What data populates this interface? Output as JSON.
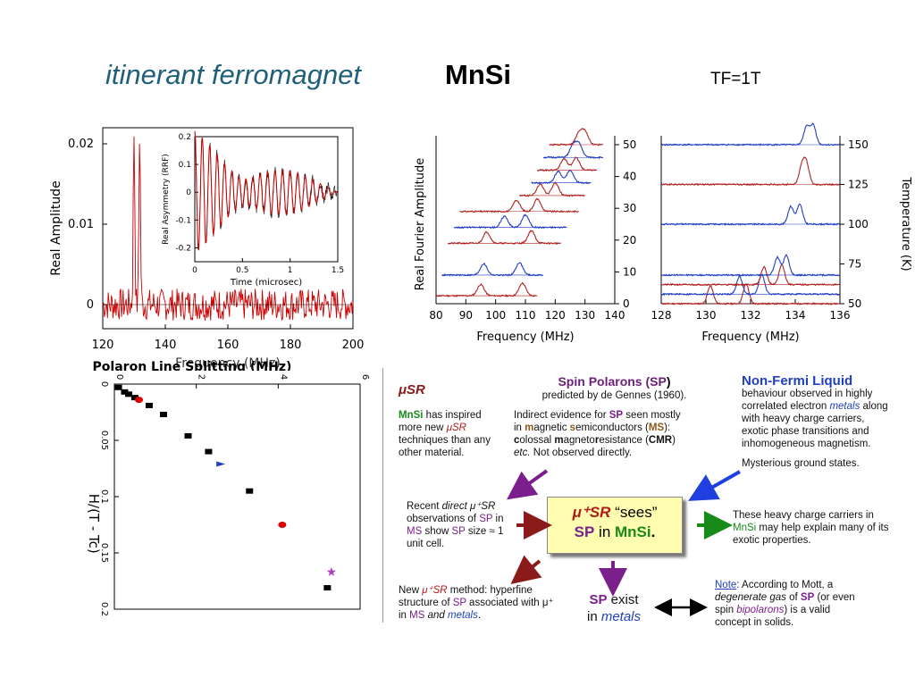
{
  "title": {
    "part1": "itinerant ferromagnet",
    "part2": "MnSi",
    "tf": "TF=1T"
  },
  "chart_data": [
    {
      "type": "line",
      "name_id": "fourier-amplitude",
      "xlabel": "Frequency (MHz)",
      "xlabel_overlap": "Polaron Line Splitting (MHz)",
      "ylabel": "Real Amplitude",
      "xlim": [
        120,
        200
      ],
      "ylim": [
        -0.003,
        0.022
      ],
      "xticks": [
        120,
        140,
        160,
        180,
        200
      ],
      "yticks": [
        0,
        0.01,
        0.02
      ],
      "ytick_labels": [
        "0",
        "0.01",
        "0.02"
      ],
      "peaks": [
        {
          "x": 130,
          "y": 0.0215
        },
        {
          "x": 131.8,
          "y": 0.0215
        }
      ],
      "noise_amplitude": 0.002,
      "color": "#cc0000",
      "inset": {
        "xlabel": "Time (microsec)",
        "ylabel": "Real Asymmetry (RRF)",
        "xlim": [
          0,
          1.5
        ],
        "ylim": [
          -0.25,
          0.2
        ],
        "xticks": [
          0,
          0.5,
          1,
          1.5
        ],
        "xtick_labels": [
          "0",
          "0.5",
          "1",
          "1.5"
        ],
        "yticks": [
          -0.2,
          -0.1,
          0,
          0.1,
          0.2
        ],
        "ytick_labels": [
          "-0.2",
          "-0.1",
          "0",
          "0.1",
          "0.2"
        ]
      }
    },
    {
      "type": "line",
      "name_id": "spectra-80-140",
      "xlabel": "Frequency (MHz)",
      "ylabel": "Real Fourier Amplitude",
      "xlim": [
        80,
        140
      ],
      "xticks": [
        80,
        90,
        100,
        110,
        120,
        130,
        140
      ],
      "right_axis_label": "Temperature (K)",
      "right_ticks": [
        0,
        10,
        20,
        30,
        40,
        50
      ],
      "series": [
        {
          "color": "#b22222",
          "temperature": 2.5,
          "x_range": [
            80,
            114
          ],
          "peaks": [
            95,
            109
          ]
        },
        {
          "color": "#1f3fbf",
          "temperature": 9,
          "x_range": [
            82,
            116
          ],
          "peaks": [
            96,
            108
          ]
        },
        {
          "color": "#b22222",
          "temperature": 19,
          "x_range": [
            84,
            122
          ],
          "peaks": [
            97,
            112
          ]
        },
        {
          "color": "#1f3fbf",
          "temperature": 24,
          "x_range": [
            86,
            124
          ],
          "peaks": [
            103,
            110
          ]
        },
        {
          "color": "#b22222",
          "temperature": 29,
          "x_range": [
            88,
            128
          ],
          "peaks": [
            107,
            114
          ]
        },
        {
          "color": "#b22222",
          "temperature": 34,
          "x_range": [
            108,
            130
          ],
          "peaks": [
            115,
            120
          ]
        },
        {
          "color": "#1f3fbf",
          "temperature": 38,
          "x_range": [
            112,
            132
          ],
          "peaks": [
            121,
            125
          ]
        },
        {
          "color": "#b22222",
          "temperature": 42,
          "x_range": [
            114,
            134
          ],
          "peaks": [
            123,
            127
          ]
        },
        {
          "color": "#1f3fbf",
          "temperature": 46,
          "x_range": [
            116,
            136
          ],
          "peaks": [
            126,
            128
          ]
        },
        {
          "color": "#b22222",
          "temperature": 50,
          "x_range": [
            118,
            136
          ],
          "peaks": [
            128,
            130
          ]
        }
      ]
    },
    {
      "type": "line",
      "name_id": "spectra-128-136",
      "xlabel": "Frequency (MHz)",
      "xlim": [
        128,
        136
      ],
      "xticks": [
        128,
        130,
        132,
        134,
        136
      ],
      "right_axis_label": "Temperature (K)",
      "right_ticks": [
        50,
        75,
        100,
        125,
        150
      ],
      "series": [
        {
          "color": "#b22222",
          "temperature": 50,
          "peaks": [
            130.2,
            131.8
          ]
        },
        {
          "color": "#1f3fbf",
          "temperature": 56,
          "peaks": [
            131.5,
            132.5
          ]
        },
        {
          "color": "#b22222",
          "temperature": 62,
          "peaks": [
            132.6,
            133.4
          ]
        },
        {
          "color": "#1f3fbf",
          "temperature": 68,
          "peaks": [
            133.2,
            133.6
          ]
        },
        {
          "color": "#1f3fbf",
          "temperature": 100,
          "peaks": [
            133.8,
            134.2
          ]
        },
        {
          "color": "#b22222",
          "temperature": 125,
          "peaks": [
            134.3,
            134.5
          ]
        },
        {
          "color": "#1f3fbf",
          "temperature": 150,
          "peaks": [
            134.5,
            134.8
          ]
        }
      ]
    },
    {
      "type": "scatter",
      "name_id": "polaron-splitting",
      "xlabel": "H/(T - Tc)",
      "xlim": [
        0,
        6
      ],
      "ylim": [
        0,
        0.2
      ],
      "xticks": [
        0,
        2,
        4,
        6
      ],
      "yticks": [
        0,
        0.05,
        0.1,
        0.15,
        0.2
      ],
      "ytick_labels": [
        "0",
        "0.05",
        "0.1",
        "0.15",
        "0.2"
      ],
      "points": [
        {
          "x": 0.1,
          "y": 0.003,
          "shape": "square",
          "color": "#000000"
        },
        {
          "x": 0.25,
          "y": 0.007,
          "shape": "square",
          "color": "#000000"
        },
        {
          "x": 0.35,
          "y": 0.009,
          "shape": "square",
          "color": "#000000"
        },
        {
          "x": 0.5,
          "y": 0.012,
          "shape": "square",
          "color": "#000000"
        },
        {
          "x": 0.6,
          "y": 0.014,
          "shape": "circle",
          "color": "#dd0000"
        },
        {
          "x": 0.85,
          "y": 0.019,
          "shape": "square",
          "color": "#000000"
        },
        {
          "x": 1.2,
          "y": 0.027,
          "shape": "square",
          "color": "#000000"
        },
        {
          "x": 1.8,
          "y": 0.046,
          "shape": "square",
          "color": "#000000"
        },
        {
          "x": 2.3,
          "y": 0.06,
          "shape": "square",
          "color": "#000000"
        },
        {
          "x": 2.6,
          "y": 0.071,
          "shape": "triangle",
          "color": "#1f3fbf"
        },
        {
          "x": 3.3,
          "y": 0.095,
          "shape": "square",
          "color": "#000000"
        },
        {
          "x": 4.1,
          "y": 0.125,
          "shape": "circle",
          "color": "#dd0000"
        },
        {
          "x": 5.3,
          "y": 0.167,
          "shape": "star",
          "color": "#b03fc0"
        },
        {
          "x": 5.2,
          "y": 0.181,
          "shape": "square",
          "color": "#000000"
        }
      ]
    }
  ],
  "musr": {
    "title": "μSR",
    "mnsi": "MnSi",
    "text1": " has inspired more new ",
    "musr_inline": "μSR",
    "text2": " techniques than any other material."
  },
  "sp": {
    "title1": "Spin Polarons (",
    "title_sp": "SP",
    "title2": ")",
    "subtitle": "predicted by de Gennes (1960).",
    "l1": "Indirect evidence for ",
    "l1sp": "SP",
    "l1b": " seen mostly",
    "l2a": "in ",
    "l2m": "m",
    "l2b": "agnetic ",
    "l2s": "s",
    "l2c": "emiconductors (",
    "l2ms": "MS",
    "l2d": "):",
    "l3a": "c",
    "l3b": "olossal ",
    "l3c": "m",
    "l3d": "agneto",
    "l3e": "r",
    "l3f": "esistance (",
    "l3g": "CMR",
    "l3h": ")",
    "l4a": "etc.",
    "l4b": "  Not observed directly."
  },
  "nfl": {
    "title": "Non-Fermi Liquid",
    "l1": "behaviour observed in highly correlated electron ",
    "metals": "metals",
    "l2": " along with heavy charge carriers, exotic phase transitions and inhomogeneous magnetism.",
    "l3": "Mysterious ground states."
  },
  "recent": {
    "a": "Recent ",
    "b": "direct μ⁺SR",
    "c": " observations of ",
    "sp": "SP",
    "d": " in ",
    "ms": "MS",
    "e": " show ",
    "sp2": "SP",
    "f": " size ≈ 1 unit cell."
  },
  "sees": {
    "mu": "μ⁺SR",
    "sees": " “sees”",
    "sp": "SP",
    "in": " in ",
    "mnsi": "MnSi",
    "dot": "."
  },
  "heavy": {
    "a": "These heavy charge carriers in ",
    "mnsi": "MnSi",
    "b": " may help explain many of its exotic properties."
  },
  "newm": {
    "a": "New ",
    "mu": "μ⁺SR",
    "b": " method: hyperfine structure of ",
    "sp": "SP",
    "c": " associated with μ⁺ in ",
    "ms": "MS",
    "d": " and ",
    "metals": "metals",
    "e": "."
  },
  "exist": {
    "sp": "SP",
    "a": " exist",
    "b": "in ",
    "metals": "metals"
  },
  "note": {
    "note": "Note",
    "a": ":  According to Mott, a ",
    "dg": "degenerate gas",
    "b": " of  ",
    "sp": "SP",
    "c": " (or even spin ",
    "bip": "bipolarons",
    "d": ") is a valid concept in solids."
  }
}
